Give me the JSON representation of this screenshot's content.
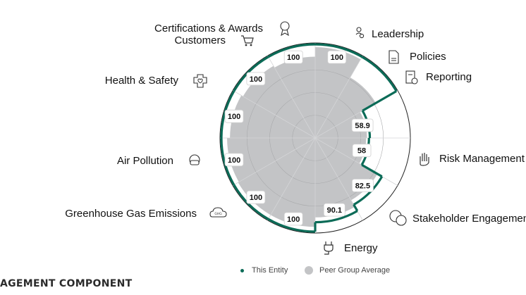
{
  "chart_data": {
    "type": "radar",
    "subtype": "polar-area",
    "scale_max": 100,
    "categories": [
      {
        "label": "Leadership",
        "entity": 100,
        "peer": 100,
        "icon": "people-icon"
      },
      {
        "label": "Policies",
        "entity": 100,
        "peer": 78,
        "icon": "document-icon"
      },
      {
        "label": "Reporting",
        "entity": 58.9,
        "peer": 58.9,
        "icon": "report-check-icon"
      },
      {
        "label": "",
        "entity": 58,
        "peer": 58,
        "icon": ""
      },
      {
        "label": "Risk Management",
        "entity": 82.5,
        "peer": 80,
        "icon": "hand-shield-icon"
      },
      {
        "label": "Stakeholder Engagement",
        "entity": 90.1,
        "peer": 88,
        "icon": "speech-bubbles-icon"
      },
      {
        "label": "Energy",
        "entity": 100,
        "peer": 98,
        "icon": "plug-icon"
      },
      {
        "label": "Greenhouse Gas Emissions",
        "entity": 100,
        "peer": 98,
        "icon": "cloud-ghg-icon"
      },
      {
        "label": "Air Pollution",
        "entity": 100,
        "peer": 97,
        "icon": "mask-icon"
      },
      {
        "label": "Health & Safety",
        "entity": 100,
        "peer": 94,
        "icon": "medical-kit-icon"
      },
      {
        "label": "Customers",
        "entity": 100,
        "peer": 92,
        "icon": "cart-icon"
      },
      {
        "label": "Certifications & Awards",
        "entity": 100,
        "peer": 90,
        "icon": "award-icon"
      }
    ],
    "value_labels": [
      "100",
      "",
      "58.9",
      "58",
      "82.5",
      "90.1",
      "100",
      "100",
      "100",
      "100",
      "100",
      "100"
    ],
    "series": [
      {
        "name": "This Entity",
        "color": "#0b6b57"
      },
      {
        "name": "Peer Group Average",
        "color": "#c3c4c6"
      }
    ],
    "grid": true
  },
  "legend": {
    "entity_label": "This Entity",
    "peer_label": "Peer Group Average"
  },
  "footer": {
    "title": "AGEMENT COMPONENT"
  }
}
